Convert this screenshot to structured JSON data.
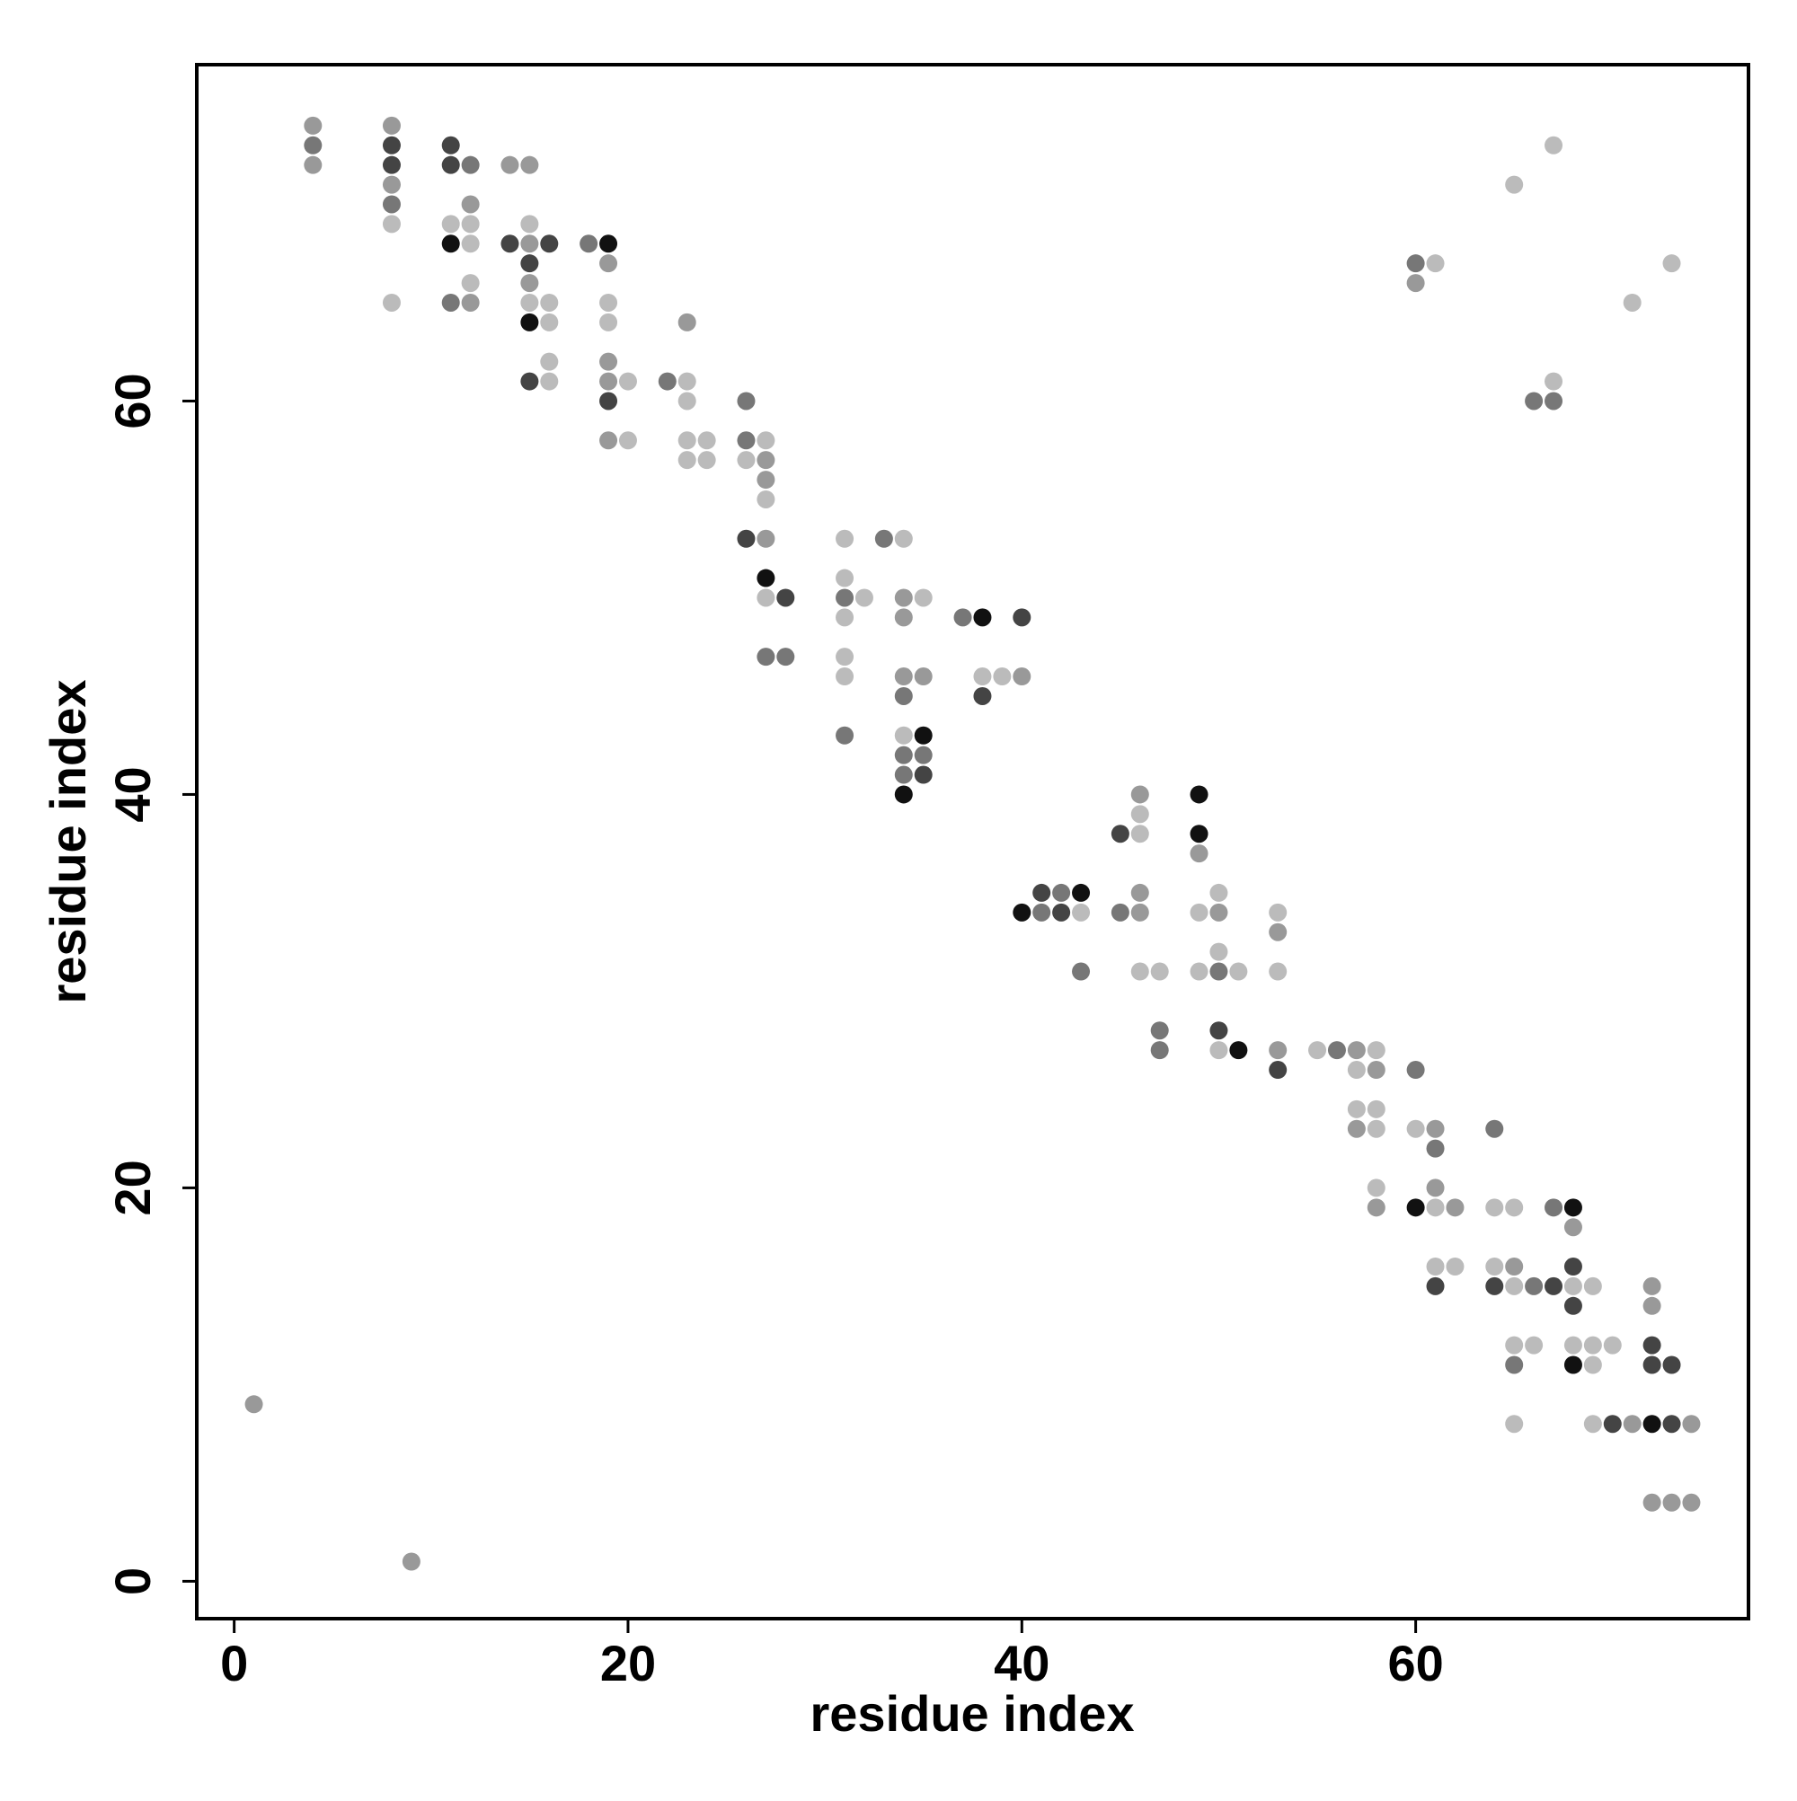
{
  "chart_data": {
    "type": "scatter",
    "xlabel": "residue index",
    "ylabel": "residue index",
    "xlim": [
      -1.9,
      76.9
    ],
    "ylim": [
      -1.9,
      77.1
    ],
    "xticks": [
      0,
      20,
      40,
      60
    ],
    "yticks": [
      0,
      20,
      40,
      60
    ],
    "x": [
      1,
      4,
      4,
      4,
      8,
      8,
      8,
      8,
      8,
      8,
      8,
      9,
      11,
      11,
      11,
      11,
      11,
      12,
      12,
      12,
      12,
      12,
      12,
      14,
      14,
      15,
      15,
      15,
      15,
      15,
      15,
      15,
      15,
      16,
      16,
      16,
      16,
      16,
      18,
      19,
      19,
      19,
      19,
      19,
      19,
      19,
      19,
      20,
      20,
      22,
      23,
      23,
      23,
      23,
      23,
      24,
      24,
      26,
      26,
      26,
      26,
      27,
      27,
      27,
      27,
      27,
      27,
      27,
      27,
      28,
      28,
      31,
      31,
      31,
      31,
      31,
      31,
      31,
      32,
      33,
      34,
      34,
      34,
      34,
      34,
      34,
      34,
      34,
      34,
      35,
      35,
      35,
      35,
      35,
      37,
      38,
      38,
      38,
      39,
      40,
      40,
      40,
      41,
      41,
      42,
      42,
      43,
      43,
      43,
      45,
      45,
      46,
      46,
      46,
      46,
      46,
      46,
      47,
      47,
      47,
      49,
      49,
      49,
      49,
      49,
      50,
      50,
      50,
      50,
      50,
      50,
      51,
      51,
      53,
      53,
      53,
      53,
      53,
      55,
      56,
      57,
      57,
      57,
      57,
      58,
      58,
      58,
      58,
      58,
      58,
      60,
      60,
      60,
      60,
      60,
      61,
      61,
      61,
      61,
      61,
      61,
      61,
      62,
      62,
      64,
      64,
      64,
      64,
      65,
      65,
      65,
      65,
      65,
      65,
      65,
      66,
      66,
      66,
      67,
      67,
      67,
      67,
      67,
      68,
      68,
      68,
      68,
      68,
      68,
      68,
      69,
      69,
      69,
      69,
      70,
      70,
      71,
      71,
      72,
      72,
      72,
      72,
      72,
      72,
      73,
      73,
      73,
      73,
      74,
      74
    ],
    "values": [
      9,
      74,
      73,
      72,
      74,
      73,
      72,
      71,
      70,
      69,
      65,
      1,
      73,
      72,
      69,
      68,
      65,
      72,
      70,
      69,
      68,
      66,
      65,
      72,
      68,
      72,
      69,
      68,
      67,
      66,
      65,
      64,
      61,
      68,
      65,
      64,
      62,
      61,
      68,
      68,
      67,
      65,
      64,
      62,
      61,
      60,
      58,
      61,
      58,
      61,
      64,
      61,
      60,
      58,
      57,
      58,
      57,
      60,
      58,
      57,
      53,
      58,
      57,
      56,
      55,
      53,
      51,
      50,
      47,
      50,
      47,
      53,
      51,
      50,
      49,
      47,
      46,
      43,
      50,
      53,
      53,
      50,
      49,
      46,
      45,
      43,
      42,
      41,
      40,
      50,
      46,
      43,
      42,
      41,
      49,
      49,
      46,
      45,
      46,
      49,
      46,
      34,
      35,
      34,
      35,
      34,
      35,
      34,
      31,
      38,
      34,
      40,
      39,
      38,
      35,
      34,
      31,
      31,
      28,
      27,
      40,
      38,
      37,
      34,
      31,
      35,
      34,
      32,
      31,
      28,
      27,
      31,
      27,
      34,
      33,
      31,
      27,
      26,
      27,
      27,
      27,
      26,
      24,
      23,
      27,
      26,
      24,
      23,
      20,
      19,
      67,
      66,
      26,
      23,
      19,
      67,
      23,
      22,
      20,
      19,
      16,
      15,
      19,
      16,
      23,
      19,
      16,
      15,
      71,
      19,
      16,
      15,
      12,
      11,
      8,
      60,
      15,
      12,
      73,
      61,
      60,
      19,
      15,
      19,
      18,
      16,
      15,
      14,
      12,
      11,
      15,
      12,
      11,
      8,
      12,
      8,
      65,
      8,
      15,
      14,
      12,
      11,
      8,
      4,
      67,
      11,
      8,
      4,
      8,
      4
    ],
    "colors": [
      "#999999",
      "#999999",
      "#777777",
      "#999999",
      "#999999",
      "#444444",
      "#444444",
      "#999999",
      "#777777",
      "#bbbbbb",
      "#bbbbbb",
      "#999999",
      "#444444",
      "#444444",
      "#bbbbbb",
      "#111111",
      "#777777",
      "#777777",
      "#999999",
      "#bbbbbb",
      "#bbbbbb",
      "#bbbbbb",
      "#999999",
      "#999999",
      "#444444",
      "#999999",
      "#bbbbbb",
      "#999999",
      "#444444",
      "#999999",
      "#bbbbbb",
      "#111111",
      "#444444",
      "#444444",
      "#bbbbbb",
      "#bbbbbb",
      "#bbbbbb",
      "#bbbbbb",
      "#777777",
      "#111111",
      "#999999",
      "#bbbbbb",
      "#bbbbbb",
      "#999999",
      "#999999",
      "#444444",
      "#999999",
      "#bbbbbb",
      "#bbbbbb",
      "#777777",
      "#999999",
      "#bbbbbb",
      "#bbbbbb",
      "#bbbbbb",
      "#bbbbbb",
      "#bbbbbb",
      "#bbbbbb",
      "#777777",
      "#777777",
      "#bbbbbb",
      "#444444",
      "#bbbbbb",
      "#999999",
      "#999999",
      "#bbbbbb",
      "#999999",
      "#111111",
      "#bbbbbb",
      "#777777",
      "#444444",
      "#777777",
      "#bbbbbb",
      "#bbbbbb",
      "#777777",
      "#bbbbbb",
      "#bbbbbb",
      "#bbbbbb",
      "#777777",
      "#bbbbbb",
      "#777777",
      "#bbbbbb",
      "#999999",
      "#999999",
      "#999999",
      "#777777",
      "#bbbbbb",
      "#777777",
      "#777777",
      "#111111",
      "#bbbbbb",
      "#999999",
      "#111111",
      "#777777",
      "#444444",
      "#777777",
      "#111111",
      "#bbbbbb",
      "#444444",
      "#bbbbbb",
      "#444444",
      "#999999",
      "#111111",
      "#444444",
      "#777777",
      "#777777",
      "#444444",
      "#111111",
      "#bbbbbb",
      "#777777",
      "#444444",
      "#777777",
      "#999999",
      "#bbbbbb",
      "#bbbbbb",
      "#999999",
      "#999999",
      "#bbbbbb",
      "#bbbbbb",
      "#777777",
      "#777777",
      "#111111",
      "#111111",
      "#999999",
      "#bbbbbb",
      "#bbbbbb",
      "#bbbbbb",
      "#999999",
      "#bbbbbb",
      "#777777",
      "#444444",
      "#bbbbbb",
      "#bbbbbb",
      "#111111",
      "#bbbbbb",
      "#999999",
      "#bbbbbb",
      "#999999",
      "#444444",
      "#bbbbbb",
      "#777777",
      "#999999",
      "#bbbbbb",
      "#bbbbbb",
      "#999999",
      "#bbbbbb",
      "#999999",
      "#bbbbbb",
      "#bbbbbb",
      "#bbbbbb",
      "#999999",
      "#777777",
      "#999999",
      "#777777",
      "#bbbbbb",
      "#111111",
      "#bbbbbb",
      "#999999",
      "#777777",
      "#999999",
      "#bbbbbb",
      "#bbbbbb",
      "#444444",
      "#999999",
      "#bbbbbb",
      "#777777",
      "#bbbbbb",
      "#bbbbbb",
      "#444444",
      "#bbbbbb",
      "#bbbbbb",
      "#999999",
      "#bbbbbb",
      "#bbbbbb",
      "#777777",
      "#bbbbbb",
      "#777777",
      "#777777",
      "#bbbbbb",
      "#bbbbbb",
      "#bbbbbb",
      "#777777",
      "#777777",
      "#444444",
      "#111111",
      "#999999",
      "#444444",
      "#bbbbbb",
      "#444444",
      "#bbbbbb",
      "#111111",
      "#bbbbbb",
      "#bbbbbb",
      "#bbbbbb",
      "#bbbbbb",
      "#bbbbbb",
      "#444444",
      "#bbbbbb",
      "#999999",
      "#999999",
      "#999999",
      "#444444",
      "#444444",
      "#111111",
      "#999999",
      "#bbbbbb",
      "#444444",
      "#444444",
      "#999999",
      "#999999",
      "#999999"
    ]
  }
}
